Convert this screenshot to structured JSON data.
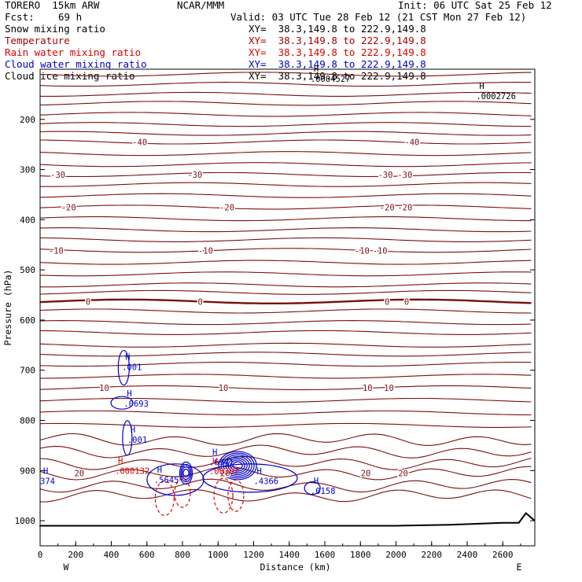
{
  "header": {
    "model": "TORERO  15km ARW",
    "center": "NCAR/MMM",
    "init": "Init: 06 UTC Sat 25 Feb 12",
    "fcst_label": "Fcst:",
    "fcst_value": "69 h",
    "valid": "Valid: 03 UTC Tue 28 Feb 12 (21 CST Mon 27 Feb 12)"
  },
  "legend": [
    {
      "label": "Snow mixing ratio",
      "xy": "XY=  38.3,149.8 to 222.9,149.8",
      "color": "#000000"
    },
    {
      "label": "Temperature",
      "xy": "XY=  38.3,149.8 to 222.9,149.8",
      "color": "#aa0000"
    },
    {
      "label": "Rain water mixing ratio",
      "xy": "XY=  38.3,149.8 to 222.9,149.8",
      "color": "#dd0000"
    },
    {
      "label": "Cloud water mixing ratio",
      "xy": "XY=  38.3,149.8 to 222.9,149.8",
      "color": "#0000cc"
    },
    {
      "label": "Cloud ice mixing ratio",
      "xy": "XY=  38.3,149.8 to 222.9,149.8",
      "color": "#000000"
    }
  ],
  "chart_data": {
    "type": "contour cross-section",
    "xlabel": "Distance (km)",
    "ylabel": "Pressure (hPa)",
    "xlim": [
      0,
      2780
    ],
    "ylim": [
      1050,
      100
    ],
    "x_ticks": [
      0,
      200,
      400,
      600,
      800,
      1000,
      1200,
      1400,
      1600,
      1800,
      2000,
      2200,
      2400,
      2600
    ],
    "y_ticks": [
      200,
      300,
      400,
      500,
      600,
      700,
      800,
      900,
      1000
    ],
    "x_end_labels": {
      "left": "W",
      "right": "E"
    },
    "temperature_isotherms": [
      {
        "label": "-40",
        "pressure": 245,
        "label_positions": [
          560,
          2090
        ]
      },
      {
        "label": "-30",
        "pressure": 310,
        "label_positions": [
          100,
          870,
          1940,
          2050
        ]
      },
      {
        "label": "-20",
        "pressure": 375,
        "label_positions": [
          160,
          1050,
          1950,
          2050
        ]
      },
      {
        "label": "-10",
        "pressure": 461,
        "label_positions": [
          90,
          930,
          1810,
          1910
        ]
      },
      {
        "label": "0",
        "pressure": 563,
        "label_positions": [
          270,
          900,
          1950,
          2060
        ]
      },
      {
        "label": "10",
        "pressure": 735,
        "label_positions": [
          360,
          1030,
          1840,
          1960
        ]
      },
      {
        "label": "20",
        "pressure": 905,
        "label_positions": [
          220,
          1040,
          1830,
          2040
        ]
      }
    ],
    "maxima_labels": [
      {
        "text": ".0002726",
        "color": "#000000",
        "x": 2450,
        "p": 155
      },
      {
        "text": ".0004527",
        "color": "#000000",
        "x": 1520,
        "p": 120
      },
      {
        "text": ".001",
        "color": "#0000cc",
        "x": 460,
        "p": 695
      },
      {
        "text": ".0693",
        "color": "#0000cc",
        "x": 470,
        "p": 768
      },
      {
        "text": ".001",
        "color": "#0000cc",
        "x": 490,
        "p": 840
      },
      {
        "text": ".000132",
        "color": "#dd0000",
        "x": 420,
        "p": 902
      },
      {
        "text": "374",
        "color": "#0000cc",
        "x": 0,
        "p": 922
      },
      {
        "text": ".5645",
        "color": "#0000cc",
        "x": 640,
        "p": 920
      },
      {
        "text": ".6941",
        "color": "#0000cc",
        "x": 950,
        "p": 885
      },
      {
        "text": ".00307",
        "color": "#dd0000",
        "x": 950,
        "p": 903
      },
      {
        "text": ".4366",
        "color": "#0000cc",
        "x": 1200,
        "p": 922
      },
      {
        "text": ".0158",
        "color": "#0000cc",
        "x": 1520,
        "p": 942
      }
    ]
  }
}
